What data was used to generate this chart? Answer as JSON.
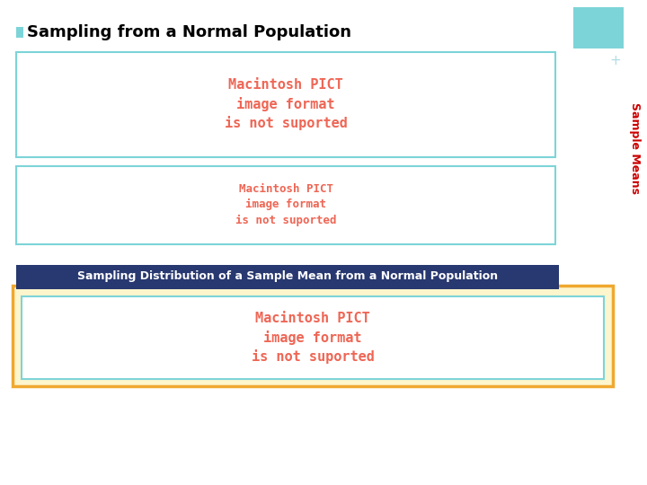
{
  "title": "Sampling from a Normal Population",
  "bullet_color": "#7dd4d8",
  "title_color": "#000000",
  "title_fontsize": 13,
  "bg_color": "#ffffff",
  "plus_text": "+",
  "plus_color": "#b0dde4",
  "sample_means_text": "Sample Means",
  "sample_means_color": "#cc0000",
  "pict_text": "Macintosh PICT\nimage format\nis not suported",
  "pict_color": "#ee6655",
  "upper_box_color": "#7dd4d8",
  "lower_box_color": "#7dd4d8",
  "banner_text": "Sampling Distribution of a Sample Mean from a Normal Population",
  "banner_bg": "#283870",
  "banner_text_color": "#ffffff",
  "banner_fontsize": 9,
  "bottom_outer_box_color": "#f0a830",
  "bottom_outer_fill": "#fdf5cc",
  "bottom_inner_box_color": "#7dd4d8",
  "bottom_inner_fill": "#ffffff",
  "teal_rect_color": "#7dd4d8"
}
